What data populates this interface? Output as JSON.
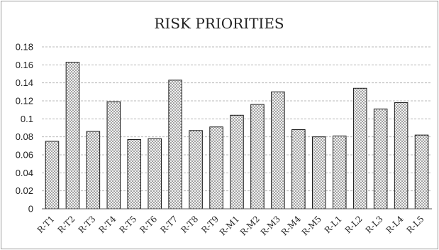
{
  "chart_data": {
    "type": "bar",
    "title": "RISK PRIORITIES",
    "xlabel": "",
    "ylabel": "",
    "categories": [
      "R-T1",
      "R-T2",
      "R-T3",
      "R-T4",
      "R-T5",
      "R-T6",
      "R-T7",
      "R-T8",
      "R-T9",
      "R-M1",
      "R-M2",
      "R-M3",
      "R-M4",
      "R-M5",
      "R-L1",
      "R-L2",
      "R-L3",
      "R-L4",
      "R-L5"
    ],
    "values": [
      0.075,
      0.163,
      0.086,
      0.119,
      0.077,
      0.078,
      0.143,
      0.087,
      0.091,
      0.104,
      0.116,
      0.13,
      0.088,
      0.08,
      0.081,
      0.134,
      0.111,
      0.118,
      0.082
    ],
    "ylim": [
      0,
      0.18
    ],
    "yticks": [
      "0",
      "0.02",
      "0.04",
      "0.06",
      "0.08",
      "0.1",
      "0.12",
      "0.14",
      "0.16",
      "0.18"
    ],
    "grid": true,
    "legend": "none",
    "bar_fill": "dotted pattern",
    "colors": {
      "bar_dots": "#3a3a3a",
      "bar_background": "#f2f2f2",
      "bar_outline": "#1a1a1a",
      "grid": "#b8b8b8"
    }
  }
}
